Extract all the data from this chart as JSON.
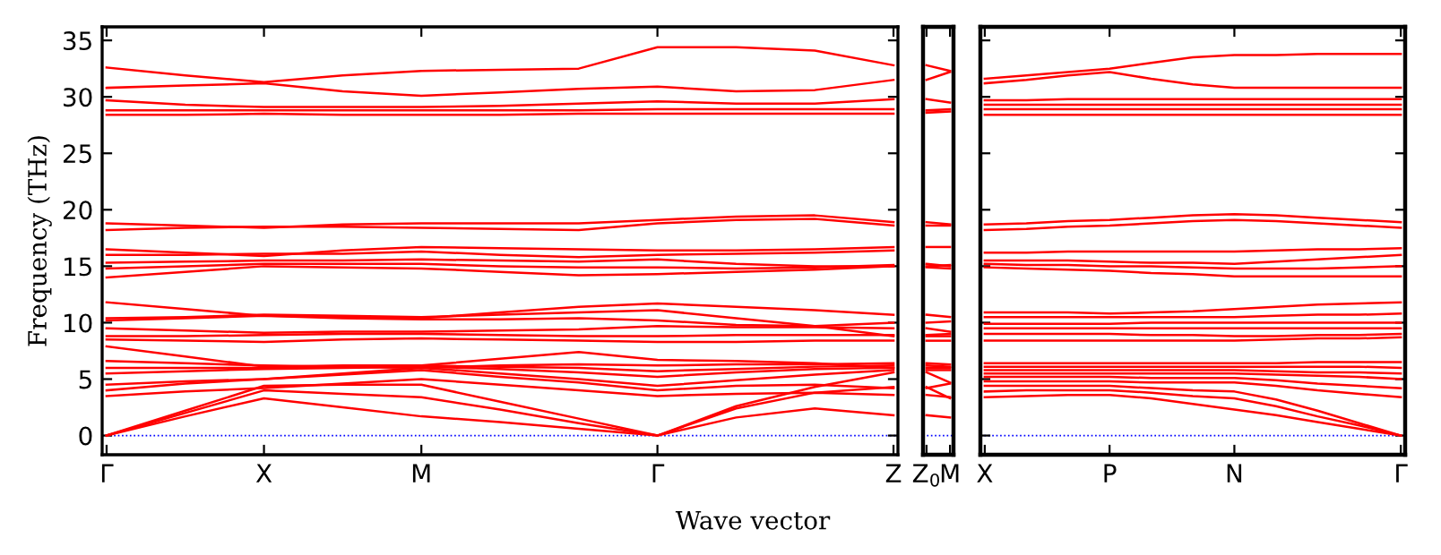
{
  "chart_data": [
    {
      "type": "line",
      "ylabel": "Frequency (THz)",
      "xlabel": "Wave vector",
      "ylim": [
        -1.7,
        36.2
      ],
      "yticks": [
        0,
        5,
        10,
        15,
        20,
        25,
        30,
        35
      ],
      "categories": [
        "Γ",
        null,
        "X",
        null,
        "M",
        null,
        null,
        "Γ",
        null,
        null,
        "Z"
      ],
      "grid": false,
      "legend": false,
      "marker": "none",
      "line_style": "solid",
      "ref_lines": [
        {
          "axis": "y",
          "value": 0,
          "color": "#0000ff",
          "line_style": "dotted"
        }
      ],
      "series": [
        {
          "color": "#ff0000",
          "values": [
            0,
            1.7,
            3.3,
            2.5,
            1.7,
            1.2,
            0.6,
            0,
            1.6,
            2.4,
            1.8
          ]
        },
        {
          "color": "#ff0000",
          "values": [
            0,
            2.0,
            4.0,
            3.7,
            3.4,
            2.3,
            1.1,
            0,
            2.4,
            3.8,
            4.3
          ]
        },
        {
          "color": "#ff0000",
          "values": [
            0,
            2.2,
            4.4,
            4.5,
            4.5,
            3.0,
            1.5,
            0,
            2.6,
            4.3,
            5.6
          ]
        },
        {
          "color": "#ff0000",
          "values": [
            3.5,
            3.9,
            4.2,
            4.6,
            5.0,
            4.5,
            4.0,
            3.5,
            3.7,
            3.8,
            3.6
          ]
        },
        {
          "color": "#ff0000",
          "values": [
            4.0,
            4.6,
            5.0,
            5.4,
            5.8,
            5.2,
            4.7,
            4.0,
            4.4,
            4.5,
            4.2
          ]
        },
        {
          "color": "#ff0000",
          "values": [
            4.5,
            4.8,
            5.0,
            5.5,
            6.0,
            5.5,
            5.0,
            4.4,
            4.9,
            5.4,
            5.8
          ]
        },
        {
          "color": "#ff0000",
          "values": [
            5.5,
            5.7,
            5.9,
            6.0,
            6.1,
            5.9,
            5.6,
            5.2,
            5.6,
            5.9,
            6.0
          ]
        },
        {
          "color": "#ff0000",
          "values": [
            6.0,
            6.0,
            6.0,
            6.1,
            6.2,
            6.1,
            6.0,
            5.7,
            5.9,
            6.1,
            6.2
          ]
        },
        {
          "color": "#ff0000",
          "values": [
            6.6,
            6.4,
            6.2,
            6.1,
            6.0,
            6.2,
            6.3,
            6.2,
            6.3,
            6.3,
            6.4
          ]
        },
        {
          "color": "#ff0000",
          "values": [
            7.9,
            7.0,
            6.1,
            6.2,
            6.2,
            6.8,
            7.4,
            6.7,
            6.6,
            6.4,
            6.0
          ]
        },
        {
          "color": "#ff0000",
          "values": [
            8.5,
            8.4,
            8.3,
            8.5,
            8.6,
            8.5,
            8.4,
            8.3,
            8.3,
            8.4,
            8.4
          ]
        },
        {
          "color": "#ff0000",
          "values": [
            8.8,
            8.8,
            8.9,
            9.0,
            9.0,
            8.9,
            8.8,
            8.8,
            8.9,
            8.9,
            8.9
          ]
        },
        {
          "color": "#ff0000",
          "values": [
            9.5,
            9.3,
            9.1,
            9.2,
            9.2,
            9.3,
            9.4,
            9.7,
            9.6,
            9.6,
            9.5
          ]
        },
        {
          "color": "#ff0000",
          "values": [
            10.2,
            10.4,
            10.6,
            10.4,
            10.3,
            10.3,
            10.4,
            10.2,
            9.8,
            9.7,
            10.0
          ]
        },
        {
          "color": "#ff0000",
          "values": [
            10.4,
            10.5,
            10.7,
            10.6,
            10.5,
            10.7,
            10.9,
            11.1,
            10.4,
            9.7,
            8.8
          ]
        },
        {
          "color": "#ff0000",
          "values": [
            11.8,
            11.2,
            10.6,
            10.5,
            10.4,
            10.9,
            11.4,
            11.7,
            11.4,
            11.1,
            10.7
          ]
        },
        {
          "color": "#ff0000",
          "values": [
            14.0,
            14.5,
            15.0,
            14.9,
            14.8,
            14.5,
            14.2,
            14.3,
            14.5,
            14.7,
            15.0
          ]
        },
        {
          "color": "#ff0000",
          "values": [
            14.8,
            15.0,
            15.2,
            15.2,
            15.2,
            15.0,
            14.9,
            14.9,
            14.8,
            14.9,
            15.1
          ]
        },
        {
          "color": "#ff0000",
          "values": [
            15.3,
            15.4,
            15.5,
            15.5,
            15.6,
            15.5,
            15.4,
            15.6,
            15.2,
            15.0,
            15.0
          ]
        },
        {
          "color": "#ff0000",
          "values": [
            16.0,
            16.0,
            16.1,
            16.1,
            16.3,
            16.0,
            15.8,
            16.0,
            16.1,
            16.2,
            16.4
          ]
        },
        {
          "color": "#ff0000",
          "values": [
            16.5,
            16.2,
            15.9,
            16.4,
            16.7,
            16.6,
            16.5,
            16.4,
            16.4,
            16.5,
            16.7
          ]
        },
        {
          "color": "#ff0000",
          "values": [
            18.2,
            18.4,
            18.5,
            18.5,
            18.4,
            18.3,
            18.2,
            18.8,
            19.1,
            19.2,
            18.6
          ]
        },
        {
          "color": "#ff0000",
          "values": [
            18.8,
            18.6,
            18.4,
            18.7,
            18.8,
            18.8,
            18.8,
            19.1,
            19.4,
            19.5,
            18.9
          ]
        },
        {
          "color": "#ff0000",
          "values": [
            28.4,
            28.4,
            28.5,
            28.4,
            28.4,
            28.4,
            28.5,
            28.5,
            28.5,
            28.5,
            28.5
          ]
        },
        {
          "color": "#ff0000",
          "values": [
            28.8,
            28.8,
            28.8,
            28.8,
            28.8,
            28.8,
            28.8,
            28.9,
            28.9,
            28.9,
            28.9
          ]
        },
        {
          "color": "#ff0000",
          "values": [
            29.7,
            29.3,
            29.1,
            29.1,
            29.1,
            29.2,
            29.4,
            29.6,
            29.4,
            29.4,
            29.8
          ]
        },
        {
          "color": "#ff0000",
          "values": [
            30.8,
            31.0,
            31.2,
            30.5,
            30.1,
            30.4,
            30.7,
            30.9,
            30.5,
            30.6,
            31.5
          ]
        },
        {
          "color": "#ff0000",
          "values": [
            32.6,
            31.9,
            31.3,
            31.9,
            32.3,
            32.4,
            32.5,
            34.4,
            34.4,
            34.1,
            32.8
          ]
        }
      ]
    },
    {
      "type": "line",
      "ylim": [
        -1.7,
        36.2
      ],
      "categories": [
        "Z$_{0}$",
        "M"
      ],
      "tick_labels": "x",
      "grid": false,
      "legend": false,
      "marker": "none",
      "line_style": "solid",
      "ref_lines": [
        {
          "axis": "y",
          "value": 0,
          "color": "#0000ff",
          "line_style": "dotted"
        }
      ],
      "series": [
        {
          "color": "#ff0000",
          "values": [
            1.8,
            1.6
          ]
        },
        {
          "color": "#ff0000",
          "values": [
            3.6,
            3.4
          ]
        },
        {
          "color": "#ff0000",
          "values": [
            4.2,
            4.6
          ]
        },
        {
          "color": "#ff0000",
          "values": [
            5.6,
            4.7
          ]
        },
        {
          "color": "#ff0000",
          "values": [
            4.3,
            3.3
          ]
        },
        {
          "color": "#ff0000",
          "values": [
            5.8,
            5.8
          ]
        },
        {
          "color": "#ff0000",
          "values": [
            6.0,
            6.0
          ]
        },
        {
          "color": "#ff0000",
          "values": [
            6.2,
            6.1
          ]
        },
        {
          "color": "#ff0000",
          "values": [
            6.4,
            6.3
          ]
        },
        {
          "color": "#ff0000",
          "values": [
            8.4,
            8.4
          ]
        },
        {
          "color": "#ff0000",
          "values": [
            8.8,
            8.8
          ]
        },
        {
          "color": "#ff0000",
          "values": [
            8.9,
            9.0
          ]
        },
        {
          "color": "#ff0000",
          "values": [
            9.5,
            9.2
          ]
        },
        {
          "color": "#ff0000",
          "values": [
            10.0,
            10.1
          ]
        },
        {
          "color": "#ff0000",
          "values": [
            10.7,
            10.5
          ]
        },
        {
          "color": "#ff0000",
          "values": [
            14.9,
            14.8
          ]
        },
        {
          "color": "#ff0000",
          "values": [
            15.0,
            15.1
          ]
        },
        {
          "color": "#ff0000",
          "values": [
            15.2,
            15.0
          ]
        },
        {
          "color": "#ff0000",
          "values": [
            16.7,
            16.7
          ]
        },
        {
          "color": "#ff0000",
          "values": [
            18.6,
            18.6
          ]
        },
        {
          "color": "#ff0000",
          "values": [
            18.9,
            18.7
          ]
        },
        {
          "color": "#ff0000",
          "values": [
            28.6,
            28.7
          ]
        },
        {
          "color": "#ff0000",
          "values": [
            28.8,
            28.9
          ]
        },
        {
          "color": "#ff0000",
          "values": [
            29.8,
            29.5
          ]
        },
        {
          "color": "#ff0000",
          "values": [
            31.5,
            32.2
          ]
        },
        {
          "color": "#ff0000",
          "values": [
            32.8,
            32.3
          ]
        }
      ]
    },
    {
      "type": "line",
      "ylim": [
        -1.7,
        36.2
      ],
      "categories": [
        "X",
        null,
        null,
        "P",
        null,
        null,
        "N",
        null,
        null,
        null,
        "Γ"
      ],
      "yticks": [
        {
          "value": 0,
          "label": null
        },
        {
          "value": 5,
          "label": null
        },
        {
          "value": 10,
          "label": null
        },
        {
          "value": 15,
          "label": null
        },
        {
          "value": 20,
          "label": null
        },
        {
          "value": 25,
          "label": null
        },
        {
          "value": 30,
          "label": null
        },
        {
          "value": 35,
          "label": null
        }
      ],
      "tick_labels": "x",
      "grid": false,
      "legend": false,
      "marker": "none",
      "line_style": "solid",
      "ref_lines": [
        {
          "axis": "y",
          "value": 0,
          "color": "#0000ff",
          "line_style": "dotted"
        }
      ],
      "series": [
        {
          "color": "#ff0000",
          "values": [
            3.4,
            3.5,
            3.6,
            3.6,
            3.3,
            2.8,
            2.3,
            1.8,
            1.2,
            0.6,
            0
          ]
        },
        {
          "color": "#ff0000",
          "values": [
            3.9,
            4.0,
            4.0,
            4.0,
            3.8,
            3.5,
            3.3,
            2.6,
            1.7,
            0.9,
            0
          ]
        },
        {
          "color": "#ff0000",
          "values": [
            4.4,
            4.4,
            4.4,
            4.4,
            4.2,
            4.0,
            3.9,
            3.2,
            2.2,
            1.1,
            0
          ]
        },
        {
          "color": "#ff0000",
          "values": [
            4.8,
            4.8,
            4.8,
            4.8,
            4.7,
            4.7,
            4.7,
            4.4,
            4.0,
            3.7,
            3.4
          ]
        },
        {
          "color": "#ff0000",
          "values": [
            5.2,
            5.2,
            5.2,
            5.2,
            5.1,
            5.1,
            5.1,
            4.9,
            4.6,
            4.4,
            4.2
          ]
        },
        {
          "color": "#ff0000",
          "values": [
            5.5,
            5.5,
            5.5,
            5.5,
            5.5,
            5.5,
            5.5,
            5.4,
            5.3,
            5.2,
            5.0
          ]
        },
        {
          "color": "#ff0000",
          "values": [
            5.8,
            5.8,
            5.8,
            5.8,
            5.8,
            5.8,
            5.8,
            5.7,
            5.6,
            5.6,
            5.5
          ]
        },
        {
          "color": "#ff0000",
          "values": [
            6.1,
            6.1,
            6.1,
            6.1,
            6.1,
            6.1,
            6.1,
            6.1,
            6.1,
            6.1,
            6.0
          ]
        },
        {
          "color": "#ff0000",
          "values": [
            6.4,
            6.4,
            6.4,
            6.4,
            6.4,
            6.4,
            6.4,
            6.4,
            6.5,
            6.5,
            6.5
          ]
        },
        {
          "color": "#ff0000",
          "values": [
            8.4,
            8.4,
            8.4,
            8.4,
            8.4,
            8.4,
            8.4,
            8.5,
            8.6,
            8.6,
            8.7
          ]
        },
        {
          "color": "#ff0000",
          "values": [
            9.0,
            9.0,
            9.0,
            9.0,
            8.9,
            8.9,
            8.8,
            8.8,
            8.9,
            8.9,
            9.0
          ]
        },
        {
          "color": "#ff0000",
          "values": [
            9.5,
            9.5,
            9.5,
            9.5,
            9.5,
            9.5,
            9.5,
            9.5,
            9.5,
            9.5,
            9.5
          ]
        },
        {
          "color": "#ff0000",
          "values": [
            9.9,
            9.9,
            9.9,
            9.9,
            10.0,
            10.0,
            10.0,
            10.0,
            10.0,
            10.0,
            10.0
          ]
        },
        {
          "color": "#ff0000",
          "values": [
            10.5,
            10.5,
            10.5,
            10.5,
            10.5,
            10.5,
            10.5,
            10.6,
            10.7,
            10.7,
            10.8
          ]
        },
        {
          "color": "#ff0000",
          "values": [
            10.9,
            10.9,
            10.9,
            10.8,
            10.9,
            11.0,
            11.2,
            11.4,
            11.6,
            11.7,
            11.8
          ]
        },
        {
          "color": "#ff0000",
          "values": [
            14.9,
            14.8,
            14.7,
            14.6,
            14.4,
            14.3,
            14.1,
            14.1,
            14.1,
            14.1,
            14.1
          ]
        },
        {
          "color": "#ff0000",
          "values": [
            15.2,
            15.1,
            15.1,
            15.0,
            15.0,
            14.9,
            14.8,
            14.8,
            14.8,
            14.9,
            15.0
          ]
        },
        {
          "color": "#ff0000",
          "values": [
            15.5,
            15.5,
            15.5,
            15.4,
            15.3,
            15.3,
            15.2,
            15.4,
            15.6,
            15.8,
            16.0
          ]
        },
        {
          "color": "#ff0000",
          "values": [
            16.2,
            16.2,
            16.3,
            16.3,
            16.3,
            16.3,
            16.3,
            16.4,
            16.5,
            16.5,
            16.6
          ]
        },
        {
          "color": "#ff0000",
          "values": [
            18.2,
            18.3,
            18.5,
            18.6,
            18.8,
            19.0,
            19.1,
            19.0,
            18.8,
            18.6,
            18.4
          ]
        },
        {
          "color": "#ff0000",
          "values": [
            18.7,
            18.8,
            19.0,
            19.1,
            19.3,
            19.5,
            19.6,
            19.5,
            19.3,
            19.1,
            18.9
          ]
        },
        {
          "color": "#ff0000",
          "values": [
            28.4,
            28.4,
            28.4,
            28.4,
            28.4,
            28.4,
            28.4,
            28.4,
            28.4,
            28.4,
            28.4
          ]
        },
        {
          "color": "#ff0000",
          "values": [
            28.9,
            28.9,
            28.9,
            28.9,
            28.9,
            28.9,
            28.9,
            28.9,
            28.9,
            28.9,
            28.9
          ]
        },
        {
          "color": "#ff0000",
          "values": [
            29.3,
            29.3,
            29.3,
            29.3,
            29.3,
            29.3,
            29.3,
            29.3,
            29.3,
            29.3,
            29.3
          ]
        },
        {
          "color": "#ff0000",
          "values": [
            29.7,
            29.7,
            29.8,
            29.8,
            29.8,
            29.8,
            29.8,
            29.8,
            29.8,
            29.8,
            29.8
          ]
        },
        {
          "color": "#ff0000",
          "values": [
            31.2,
            31.5,
            31.9,
            32.2,
            31.6,
            31.1,
            30.8,
            30.8,
            30.8,
            30.8,
            30.8
          ]
        },
        {
          "color": "#ff0000",
          "values": [
            31.6,
            31.9,
            32.2,
            32.5,
            33.0,
            33.5,
            33.7,
            33.7,
            33.8,
            33.8,
            33.8
          ]
        }
      ]
    }
  ]
}
